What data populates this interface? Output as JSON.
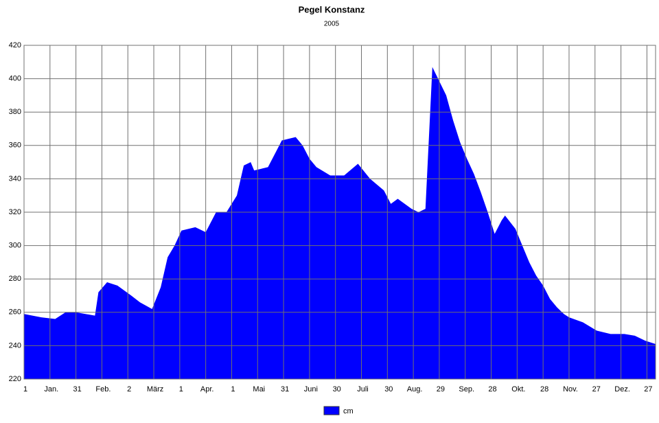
{
  "chart_data": {
    "type": "area",
    "title": "Pegel Konstanz",
    "subtitle": "2005",
    "x": [
      0,
      10,
      18,
      24,
      30,
      41,
      43,
      48,
      54,
      62,
      67,
      74,
      79,
      83,
      87,
      91,
      99,
      105,
      111,
      117,
      123,
      127,
      131,
      133,
      137,
      141,
      145,
      149,
      157,
      161,
      165,
      169,
      177,
      185,
      193,
      200,
      208,
      212,
      216,
      224,
      228,
      232,
      236,
      244,
      248,
      252,
      256,
      260,
      264,
      268,
      272,
      276,
      278,
      284,
      288,
      292,
      296,
      300,
      304,
      308,
      312,
      315,
      323,
      331,
      339,
      347,
      353,
      359,
      365
    ],
    "series": [
      {
        "name": "cm",
        "color": "#0000ff",
        "values": [
          259,
          257,
          256,
          260,
          260,
          258,
          272,
          278,
          276,
          270,
          266,
          262,
          275,
          293,
          300,
          309,
          311,
          308,
          320,
          320,
          330,
          348,
          350,
          345,
          346,
          347,
          355,
          363,
          365,
          360,
          352,
          347,
          342,
          342,
          349,
          340,
          333,
          325,
          328,
          322,
          320,
          322,
          407,
          390,
          375,
          362,
          352,
          343,
          332,
          320,
          307,
          315,
          318,
          310,
          300,
          290,
          282,
          276,
          268,
          263,
          259,
          257,
          254,
          249,
          247,
          247,
          246,
          243,
          241
        ]
      }
    ],
    "xlim": [
      0,
      365
    ],
    "xticks": [
      {
        "value": 0,
        "label": "1"
      },
      {
        "value": 15,
        "label": "Jan."
      },
      {
        "value": 30,
        "label": "31"
      },
      {
        "value": 45,
        "label": "Feb."
      },
      {
        "value": 60,
        "label": "2"
      },
      {
        "value": 75,
        "label": "März"
      },
      {
        "value": 90,
        "label": "1"
      },
      {
        "value": 105,
        "label": "Apr."
      },
      {
        "value": 120,
        "label": "1"
      },
      {
        "value": 135,
        "label": "Mai"
      },
      {
        "value": 150,
        "label": "31"
      },
      {
        "value": 165,
        "label": "Juni"
      },
      {
        "value": 180,
        "label": "30"
      },
      {
        "value": 195,
        "label": "Juli"
      },
      {
        "value": 210,
        "label": "30"
      },
      {
        "value": 225,
        "label": "Aug."
      },
      {
        "value": 240,
        "label": "29"
      },
      {
        "value": 255,
        "label": "Sep."
      },
      {
        "value": 270,
        "label": "28"
      },
      {
        "value": 285,
        "label": "Okt."
      },
      {
        "value": 300,
        "label": "28"
      },
      {
        "value": 315,
        "label": "Nov."
      },
      {
        "value": 330,
        "label": "27"
      },
      {
        "value": 345,
        "label": "Dez."
      },
      {
        "value": 360,
        "label": "27"
      }
    ],
    "ylim": [
      220,
      420
    ],
    "yticks": [
      220,
      240,
      260,
      280,
      300,
      320,
      340,
      360,
      380,
      400,
      420
    ],
    "grid": true,
    "legend": "bottom"
  }
}
